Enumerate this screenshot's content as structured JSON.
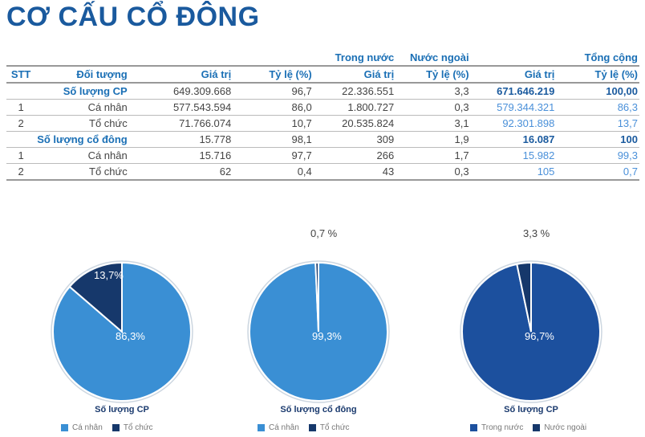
{
  "title": "CƠ CẤU CỔ ĐÔNG",
  "table": {
    "group_headers": {
      "domestic": "Trong nước",
      "foreign": "Nước ngoài",
      "total": "Tổng cộng"
    },
    "headers": [
      "STT",
      "Đối tượng",
      "Giá trị",
      "Tỷ lệ (%)",
      "Giá trị",
      "Tỷ lệ (%)",
      "Giá trị",
      "Tỷ lệ (%)"
    ],
    "rows": [
      {
        "stt": "",
        "name": "Số lượng CP",
        "c1": "649.309.668",
        "c2": "96,7",
        "c3": "22.336.551",
        "c4": "3,3",
        "c5": "671.646.219",
        "c6": "100,00",
        "group": true
      },
      {
        "stt": "1",
        "name": "Cá nhân",
        "c1": "577.543.594",
        "c2": "86,0",
        "c3": "1.800.727",
        "c4": "0,3",
        "c5": "579.344.321",
        "c6": "86,3"
      },
      {
        "stt": "2",
        "name": "Tổ chức",
        "c1": "71.766.074",
        "c2": "10,7",
        "c3": "20.535.824",
        "c4": "3,1",
        "c5": "92.301.898",
        "c6": "13,7"
      },
      {
        "stt": "",
        "name": "Số lượng cổ đông",
        "c1": "15.778",
        "c2": "98,1",
        "c3": "309",
        "c4": "1,9",
        "c5": "16.087",
        "c6": "100",
        "group": true
      },
      {
        "stt": "1",
        "name": "Cá nhân",
        "c1": "15.716",
        "c2": "97,7",
        "c3": "266",
        "c4": "1,7",
        "c5": "15.982",
        "c6": "99,3"
      },
      {
        "stt": "2",
        "name": "Tổ chức",
        "c1": "62",
        "c2": "0,4",
        "c3": "43",
        "c4": "0,3",
        "c5": "105",
        "c6": "0,7"
      }
    ]
  },
  "chart_data": [
    {
      "type": "pie",
      "title": "Số lượng CP",
      "labels": [
        "Cá nhân",
        "Tổ chức"
      ],
      "values": [
        86.3,
        13.7
      ],
      "data_labels": [
        "86,3%",
        "13,7%"
      ],
      "colors": [
        "#3a8fd4",
        "#16386b"
      ]
    },
    {
      "type": "pie",
      "title": "Số lượng cổ đông",
      "labels": [
        "Cá nhân",
        "Tổ chức"
      ],
      "values": [
        99.3,
        0.7
      ],
      "data_labels": [
        "99,3%",
        "0,7 %"
      ],
      "colors": [
        "#3a8fd4",
        "#16386b"
      ]
    },
    {
      "type": "pie",
      "title": "Số lượng CP",
      "labels": [
        "Trong nước",
        "Nước ngoài"
      ],
      "values": [
        96.7,
        3.3
      ],
      "data_labels": [
        "96,7%",
        "3,3 %"
      ],
      "colors": [
        "#1c509e",
        "#16386b"
      ]
    }
  ]
}
